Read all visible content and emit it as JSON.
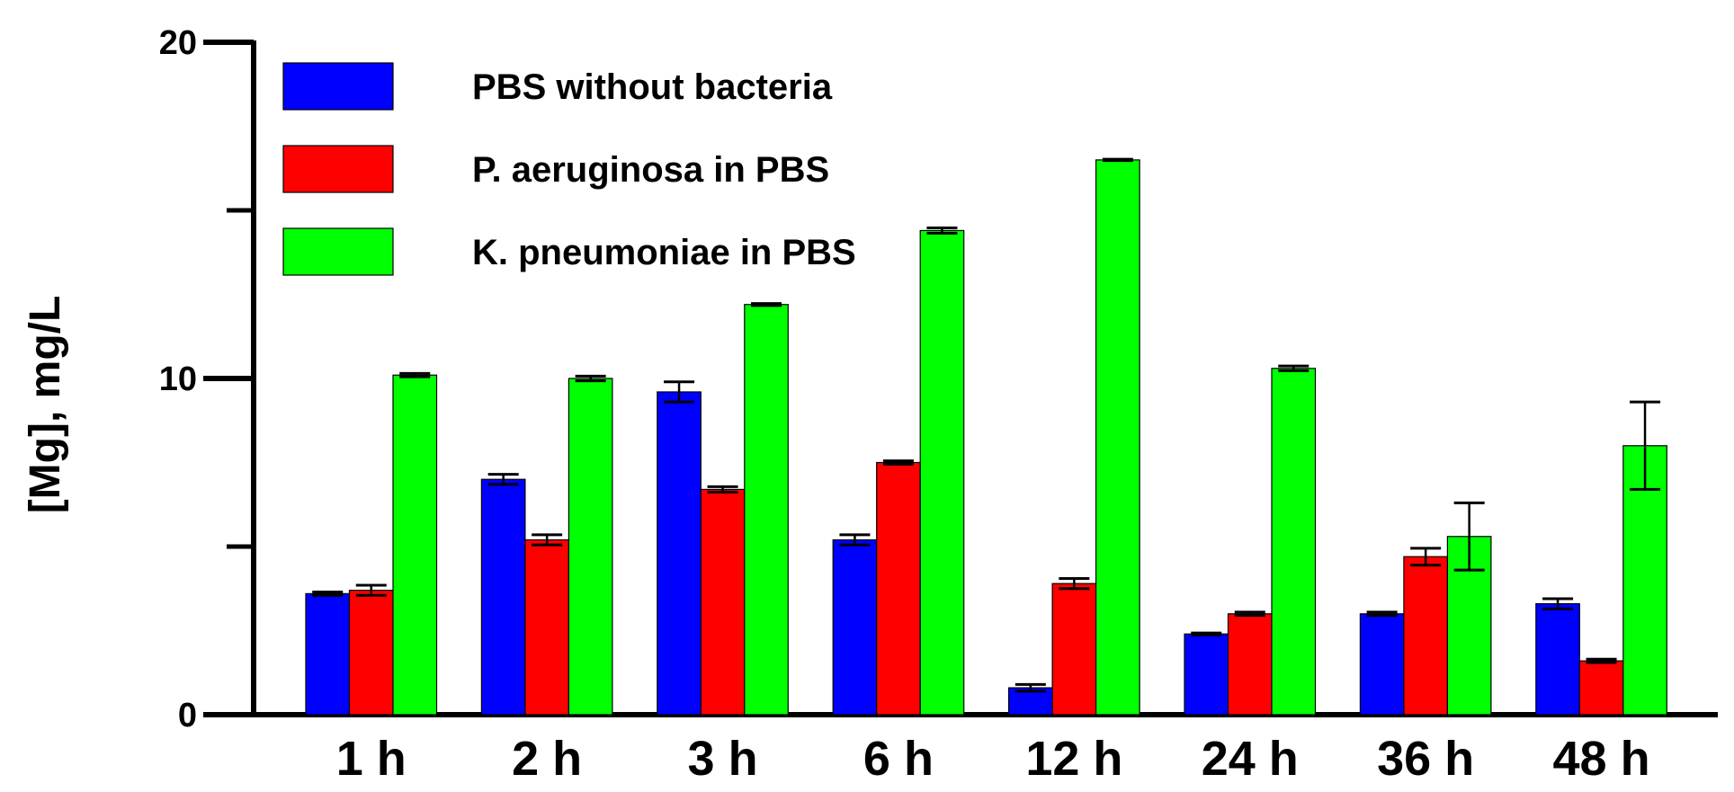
{
  "chart_data": {
    "type": "bar",
    "title": "",
    "xlabel": "",
    "ylabel": "[Mg], mg/L",
    "ylim": [
      0,
      20
    ],
    "yticks": [
      0,
      10,
      20
    ],
    "categories": [
      "1 h",
      "2 h",
      "3 h",
      "6 h",
      "12 h",
      "24 h",
      "36 h",
      "48 h"
    ],
    "series": [
      {
        "name": "PBS without bacteria",
        "color": "#0000ff",
        "values": [
          3.6,
          7.0,
          9.6,
          5.2,
          0.8,
          2.4,
          3.0,
          3.3
        ],
        "errors": [
          0.05,
          0.15,
          0.3,
          0.15,
          0.1,
          0.03,
          0.05,
          0.15
        ]
      },
      {
        "name": "P. aeruginosa in PBS",
        "color": "#ff0000",
        "values": [
          3.7,
          5.2,
          6.7,
          7.5,
          3.9,
          3.0,
          4.7,
          1.6
        ],
        "errors": [
          0.15,
          0.15,
          0.08,
          0.05,
          0.15,
          0.05,
          0.25,
          0.05
        ]
      },
      {
        "name": "K. pneumoniae in PBS",
        "color": "#00ff00",
        "values": [
          10.1,
          10.0,
          12.2,
          14.4,
          16.5,
          10.3,
          5.3,
          8.0
        ],
        "errors": [
          0.05,
          0.07,
          0.03,
          0.08,
          0.02,
          0.07,
          1.0,
          1.3
        ]
      }
    ],
    "legend": {
      "position": "top-left"
    },
    "grid": false
  }
}
